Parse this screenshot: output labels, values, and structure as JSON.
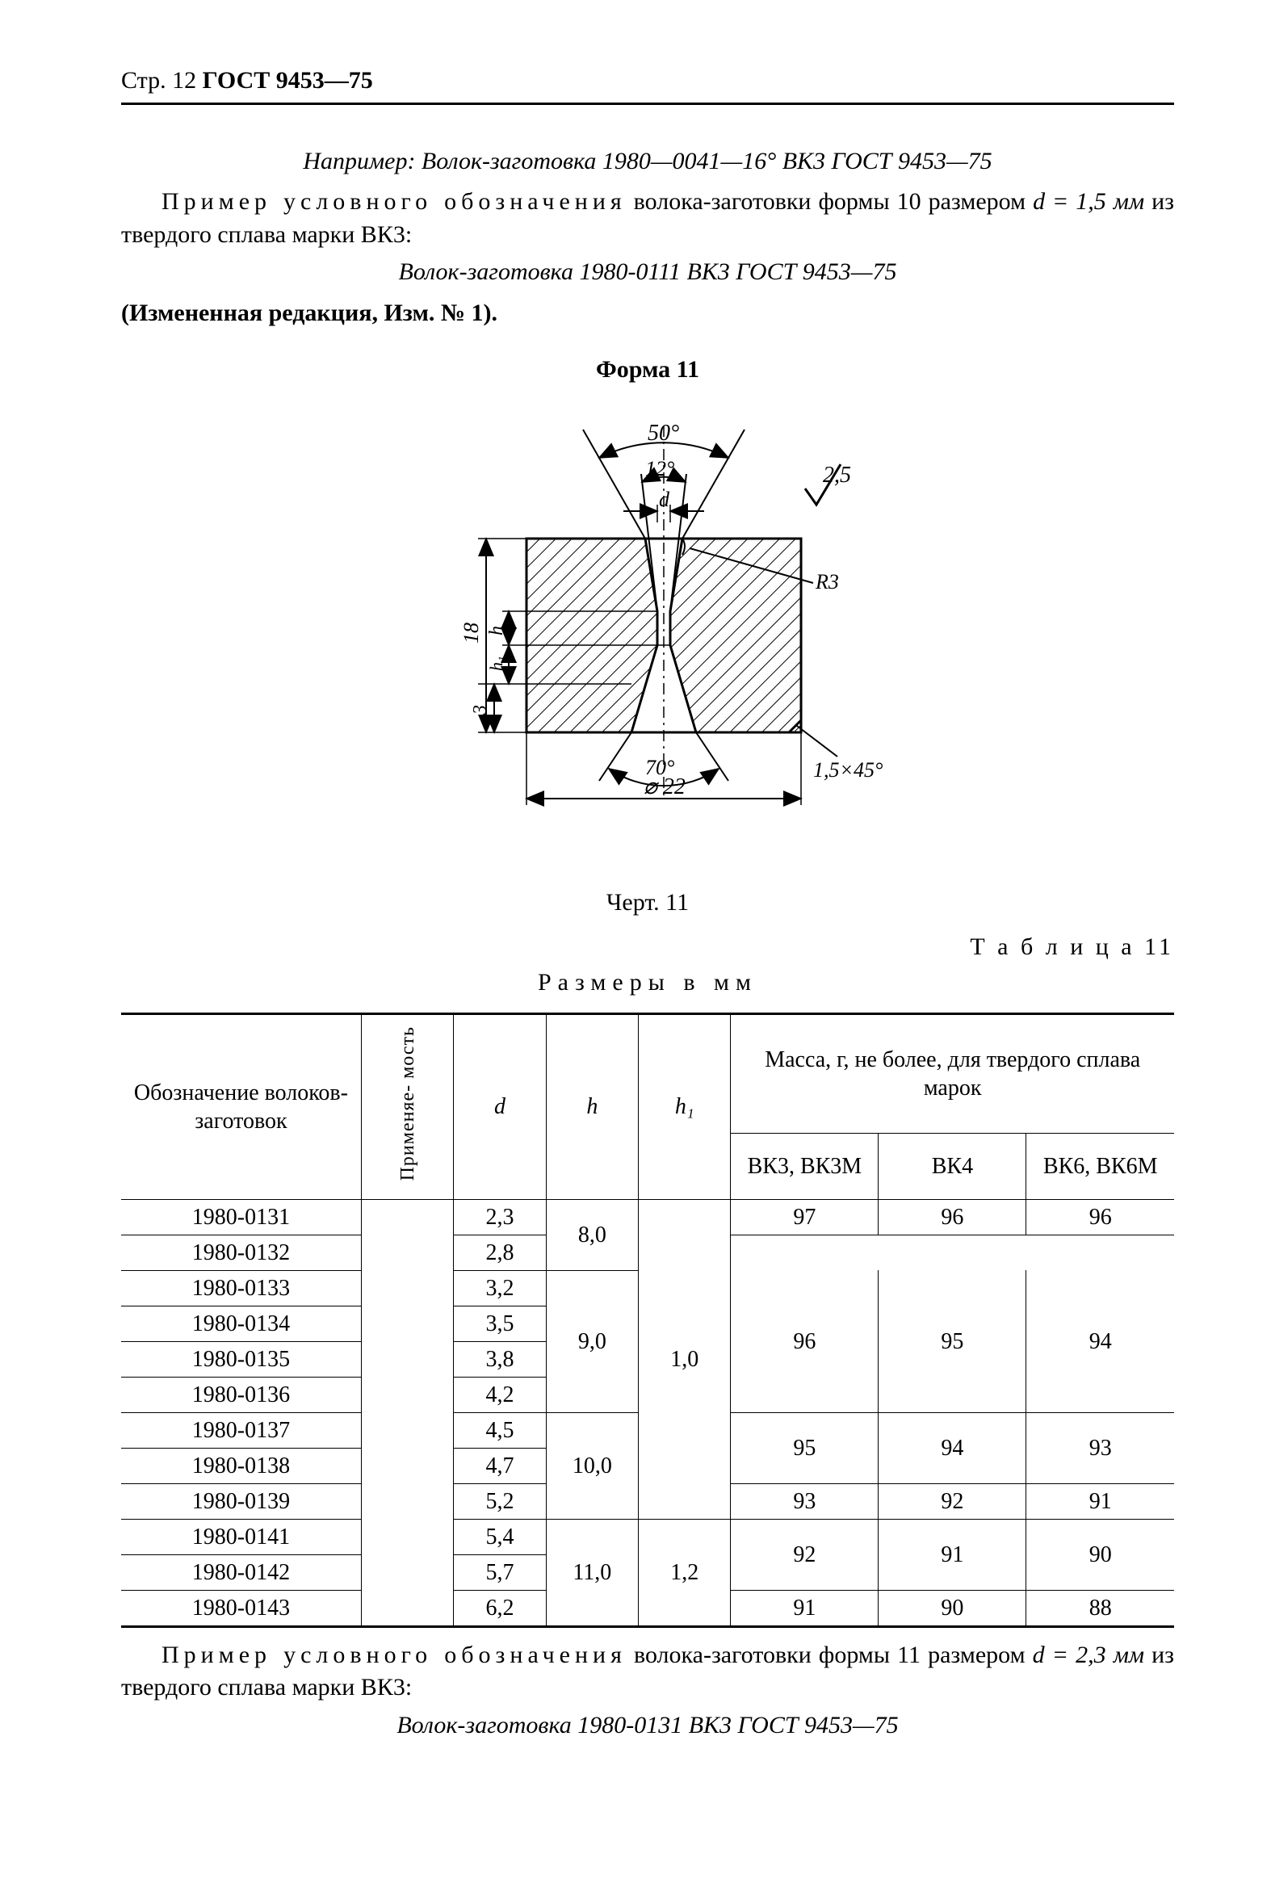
{
  "header": {
    "page_label_prefix": "Стр. 12 ",
    "standard": "ГОСТ 9453—75"
  },
  "intro": {
    "example_line": "Например: Волок-заготовка 1980—0041—16° ВК3 ГОСТ 9453—75",
    "para1_spaced": "Пример условного обозначения",
    "para1_rest": " волока-заготовки формы 10 размером ",
    "para1_dim": "d = 1,5 мм",
    "para1_end": " из твердого сплава марки ВК3:",
    "example2": "Волок-заготовка 1980-0111 ВК3 ГОСТ 9453—75",
    "changed": "(Измененная редакция, Изм. № 1)."
  },
  "form": {
    "title": "Форма 11",
    "caption": "Черт. 11"
  },
  "diagram": {
    "angle_top": "50°",
    "angle_inner": "12°",
    "dim_d": "d",
    "roughness": "2,5",
    "radius": "R3",
    "height_total": "18",
    "h_label": "h",
    "h1_label": "h₁",
    "bottom_gap": "3",
    "angle_bottom": "70°",
    "chamfer": "1,5×45°",
    "diameter": "⌀ 22",
    "hatch_color": "#000000",
    "line_width": 2.5,
    "background": "#ffffff"
  },
  "table": {
    "label": "Т а б л и ц а 11",
    "units": "Размеры в мм",
    "headers": {
      "code": "Обозначение волоков-заготовок",
      "applic": "Применяе-\nмость",
      "d": "d",
      "h": "h",
      "h1": "h₁",
      "mass_group": "Масса, г, не более, для твердого сплава марок",
      "m1": "ВК3, ВК3М",
      "m2": "ВК4",
      "m3": "ВК6, ВК6М"
    },
    "rows": [
      {
        "code": "1980-0131",
        "d": "2,3",
        "h": "8,0",
        "h1": "1,0",
        "m1": "97",
        "m2": "96",
        "m3": "96",
        "h_span": 2,
        "h1_span": 9,
        "m1_span": 1,
        "m2_span": 1,
        "m3_span": 1
      },
      {
        "code": "1980-0132",
        "d": "2,8"
      },
      {
        "code": "1980-0133",
        "d": "3,2",
        "h": "9,0",
        "h_span": 4,
        "m1": "96",
        "m2": "95",
        "m3": "94",
        "m1_span": 4,
        "m2_span": 4,
        "m3_span": 4
      },
      {
        "code": "1980-0134",
        "d": "3,5"
      },
      {
        "code": "1980-0135",
        "d": "3,8"
      },
      {
        "code": "1980-0136",
        "d": "4,2"
      },
      {
        "code": "1980-0137",
        "d": "4,5",
        "h": "10,0",
        "h_span": 3,
        "m1": "95",
        "m1_span": 2,
        "m2": "94",
        "m2_span": 2,
        "m3": "93",
        "m3_span": 2
      },
      {
        "code": "1980-0138",
        "d": "4,7"
      },
      {
        "code": "1980-0139",
        "d": "5,2",
        "m1": "93",
        "m2": "92",
        "m3": "91",
        "m1_span": 1
      },
      {
        "code": "1980-0141",
        "d": "5,4",
        "h": "11,0",
        "h_span": 3,
        "h1": "1,2",
        "h1_span": 3,
        "m1": "92",
        "m2": "91",
        "m3": "90",
        "m1_span": 2,
        "m2_span": 2,
        "m3_span": 2
      },
      {
        "code": "1980-0142",
        "d": "5,7"
      },
      {
        "code": "1980-0143",
        "d": "6,2",
        "m1": "91",
        "m2": "90",
        "m3": "88",
        "m1_span": 1
      }
    ]
  },
  "footer": {
    "para_spaced": "Пример условного обозначения",
    "para_rest": " волока-заготовки формы 11 размером ",
    "para_dim": "d = 2,3 мм",
    "para_end": " из твердого сплава марки ВК3:",
    "example": "Волок-заготовка 1980-0131 ВК3 ГОСТ 9453—75"
  }
}
